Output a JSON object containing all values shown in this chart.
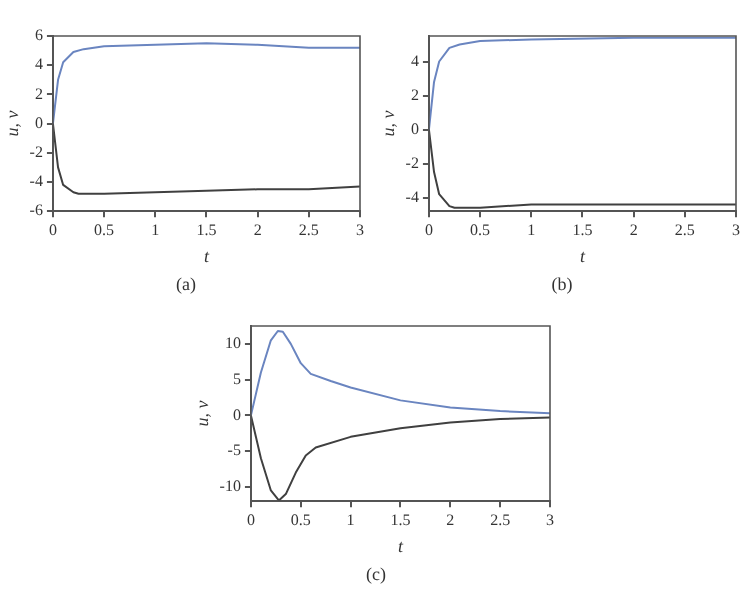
{
  "chart_data": [
    {
      "type": "line",
      "xlabel": "t",
      "ylabel": "u, v",
      "annotations": [
        "(a)"
      ],
      "xlim": [
        0,
        3
      ],
      "ylim": [
        -6,
        6
      ],
      "xticks": [
        0,
        0.5,
        1,
        1.5,
        2,
        2.5,
        3
      ],
      "yticks": [
        -6,
        -4,
        -2,
        0,
        2,
        4,
        6
      ],
      "grid": false,
      "legend": false,
      "marker": "none",
      "line_style": "solid",
      "series": [
        {
          "color": "#6a85c0",
          "x": [
            0,
            0.05,
            0.1,
            0.2,
            0.3,
            0.5,
            1,
            1.5,
            2,
            2.5,
            3
          ],
          "values": [
            0,
            3.0,
            4.2,
            4.9,
            5.1,
            5.3,
            5.4,
            5.5,
            5.4,
            5.2,
            5.2
          ]
        },
        {
          "color": "#404040",
          "x": [
            0,
            0.05,
            0.1,
            0.2,
            0.25,
            0.5,
            1,
            1.5,
            2,
            2.5,
            3
          ],
          "values": [
            0,
            -3.0,
            -4.2,
            -4.7,
            -4.8,
            -4.8,
            -4.7,
            -4.6,
            -4.5,
            -4.5,
            -4.3
          ]
        }
      ]
    },
    {
      "type": "line",
      "xlabel": "t",
      "ylabel": "u, v",
      "annotations": [
        "(b)"
      ],
      "xlim": [
        0,
        3
      ],
      "ylim": [
        -4.8,
        5.5
      ],
      "xticks": [
        0,
        0.5,
        1,
        1.5,
        2,
        2.5,
        3
      ],
      "yticks": [
        -4,
        -2,
        0,
        2,
        4
      ],
      "grid": false,
      "legend": false,
      "marker": "none",
      "line_style": "solid",
      "series": [
        {
          "color": "#6a85c0",
          "x": [
            0,
            0.05,
            0.1,
            0.2,
            0.3,
            0.5,
            1,
            2,
            3
          ],
          "values": [
            0,
            2.8,
            4.0,
            4.8,
            5.0,
            5.2,
            5.3,
            5.4,
            5.4
          ]
        },
        {
          "color": "#404040",
          "x": [
            0,
            0.05,
            0.1,
            0.2,
            0.25,
            0.5,
            1,
            2,
            3
          ],
          "values": [
            0,
            -2.5,
            -3.8,
            -4.5,
            -4.6,
            -4.6,
            -4.4,
            -4.4,
            -4.4
          ]
        }
      ]
    },
    {
      "type": "line",
      "xlabel": "t",
      "ylabel": "u, v",
      "annotations": [
        "(c)"
      ],
      "xlim": [
        0,
        3
      ],
      "ylim": [
        -12,
        12.5
      ],
      "xticks": [
        0,
        0.5,
        1,
        1.5,
        2,
        2.5,
        3
      ],
      "yticks": [
        -10,
        -5,
        0,
        5,
        10
      ],
      "grid": false,
      "legend": false,
      "marker": "none",
      "line_style": "solid",
      "series": [
        {
          "color": "#6a85c0",
          "x": [
            0,
            0.1,
            0.2,
            0.27,
            0.32,
            0.4,
            0.5,
            0.6,
            0.8,
            1,
            1.5,
            2,
            2.5,
            3
          ],
          "values": [
            0,
            6,
            10.5,
            11.8,
            11.7,
            10,
            7.3,
            5.8,
            4.8,
            3.9,
            2.1,
            1.1,
            0.6,
            0.3
          ]
        },
        {
          "color": "#404040",
          "x": [
            0,
            0.1,
            0.2,
            0.28,
            0.35,
            0.45,
            0.55,
            0.65,
            1,
            1.5,
            2,
            2.5,
            3
          ],
          "values": [
            0,
            -6,
            -10.5,
            -11.9,
            -11,
            -8,
            -5.6,
            -4.5,
            -3,
            -1.8,
            -1.0,
            -0.5,
            -0.3
          ]
        }
      ]
    }
  ]
}
